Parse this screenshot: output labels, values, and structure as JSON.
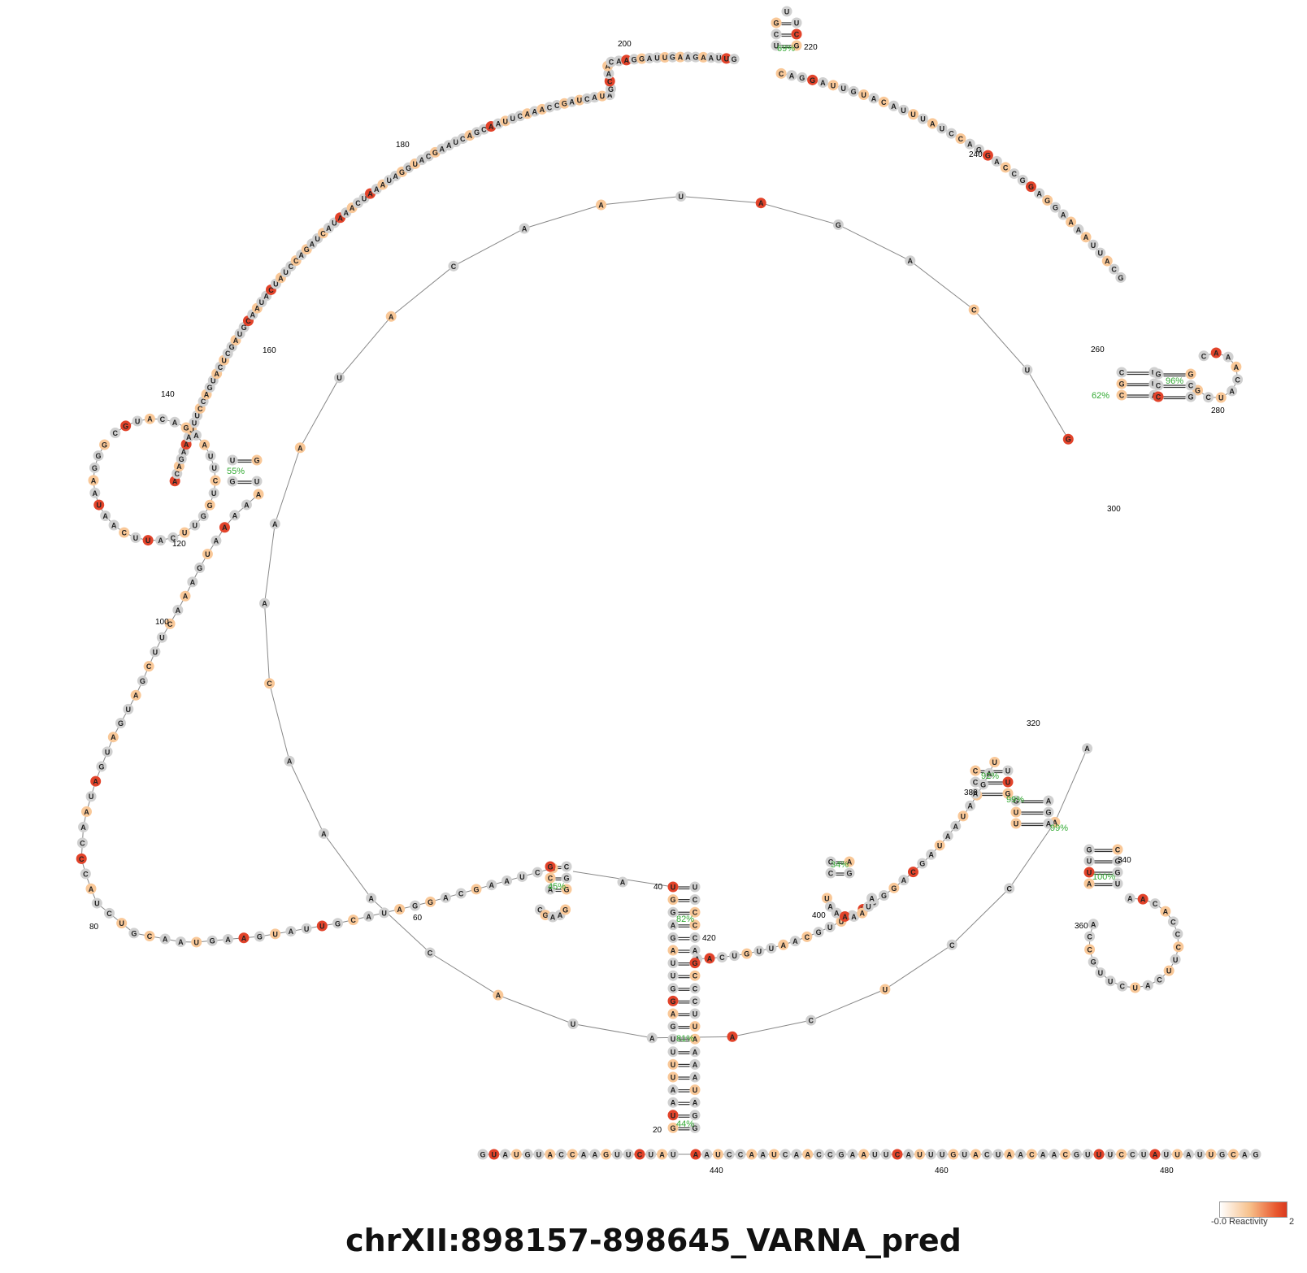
{
  "title": "chrXII:898157-898645_VARNA_pred",
  "legend": {
    "min_label": "-0.0",
    "label": "Reactivity",
    "max_label": "2"
  },
  "colors": {
    "low": "#d0d0d0",
    "mid": "#f9c898",
    "high": "#e2432a",
    "backbone": "#888888",
    "pct": "#33aa33"
  },
  "sequence_segments": [
    {
      "name": "upper-left-arc",
      "seq": "ACAGAAAUUUCCAGUACUCGAUGCAAUACUAUCCAGAUCAUAAACUAAAUAGGUACGAAUCAGCAAUUCAAACCGAUCAUAGCAACAAGGAUUGAAGAAUUG"
    },
    {
      "name": "upper-right-arc",
      "seq": "CAGGAUUGUACAUUUAUCCAGGACCGGAGGAAAAUUACG"
    },
    {
      "name": "right-arc",
      "seq": "GUCAGAUAACAUAAACAAACAUAACUCCAA"
    },
    {
      "name": "lower-arc",
      "seq": "UAGCAUAAUAGCAGGCUAUUGCAAUUGUCAA"
    },
    {
      "name": "lower-left-arc",
      "seq": "AAAAAUGAAACUUCGAUGAUGAUAACCCAUCUGCAAUGAAGUAUUGCAUAGGACGAAUCC"
    },
    {
      "name": "bottom-strand",
      "seq": "GUAUGUACCAAGUUCUAU-AAUCCAAUCAACCGAAUUCAUUUGUACUAACAACGUUUCCUAUUAUUGCAG"
    }
  ],
  "position_labels": [
    "20",
    "40",
    "60",
    "80",
    "100",
    "120",
    "140",
    "160",
    "180",
    "200",
    "220",
    "240",
    "260",
    "280",
    "300",
    "320",
    "340",
    "360",
    "380",
    "400",
    "420",
    "440",
    "460",
    "480"
  ],
  "pair_percentages": [
    "69%",
    "62%",
    "96%",
    "55%",
    "92%",
    "99%",
    "99%",
    "100%",
    "45%",
    "34%",
    "82%",
    "81%",
    "44%"
  ]
}
